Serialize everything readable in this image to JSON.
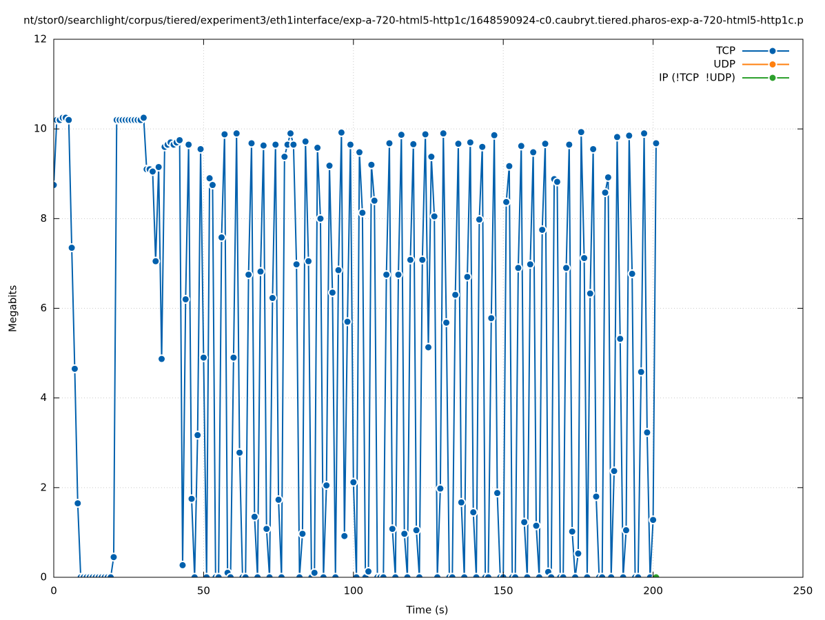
{
  "chart_data": {
    "type": "line",
    "title": "nt/stor0/searchlight/corpus/tiered/experiment3/eth1interface/exp-a-720-html5-http1c/1648590924-c0.caubryt.tiered.pharos-exp-a-720-html5-http1c.p",
    "xlabel": "Time (s)",
    "ylabel": "Megabits",
    "xlim": [
      0,
      250
    ],
    "xticks": [
      0,
      50,
      100,
      150,
      200,
      250
    ],
    "ylim": [
      0,
      12
    ],
    "yticks": [
      0,
      2,
      4,
      6,
      8,
      10,
      12
    ],
    "grid": true,
    "legend": "top-right",
    "series": [
      {
        "name": "TCP",
        "color": "#0060ad",
        "x": [
          0,
          1,
          2,
          3,
          4,
          5,
          6,
          7,
          8,
          9,
          10,
          11,
          12,
          13,
          14,
          15,
          16,
          17,
          18,
          19,
          20,
          21,
          22,
          23,
          24,
          25,
          26,
          27,
          28,
          29,
          30,
          31,
          32,
          33,
          34,
          35,
          36,
          37,
          38,
          39,
          40,
          41,
          42,
          43,
          44,
          45,
          46,
          47,
          48,
          49,
          50,
          51,
          52,
          53,
          54,
          55,
          56,
          57,
          58,
          59,
          60,
          61,
          62,
          63,
          64,
          65,
          66,
          67,
          68,
          69,
          70,
          71,
          72,
          73,
          74,
          75,
          76,
          77,
          78,
          79,
          80,
          81,
          82,
          83,
          84,
          85,
          86,
          87,
          88,
          89,
          90,
          91,
          92,
          93,
          94,
          95,
          96,
          97,
          98,
          99,
          100,
          101,
          102,
          103,
          104,
          105,
          106,
          107,
          108,
          109,
          110,
          111,
          112,
          113,
          114,
          115,
          116,
          117,
          118,
          119,
          120,
          121,
          122,
          123,
          124,
          125,
          126,
          127,
          128,
          129,
          130,
          131,
          132,
          133,
          134,
          135,
          136,
          137,
          138,
          139,
          140,
          141,
          142,
          143,
          144,
          145,
          146,
          147,
          148,
          149,
          150,
          151,
          152,
          153,
          154,
          155,
          156,
          157,
          158,
          159,
          160,
          161,
          162,
          163,
          164,
          165,
          166,
          167,
          168,
          169,
          170,
          171,
          172,
          173,
          174,
          175,
          176,
          177,
          178,
          179,
          180,
          181,
          182,
          183,
          184,
          185,
          186,
          187,
          188,
          189,
          190,
          191,
          192,
          193,
          194,
          195,
          196,
          197,
          198,
          199,
          200,
          201
        ],
        "values": [
          8.75,
          10.2,
          10.2,
          10.25,
          10.25,
          10.2,
          7.35,
          4.65,
          1.65,
          0,
          0,
          0,
          0,
          0,
          0,
          0,
          0,
          0,
          0,
          0,
          0.45,
          10.2,
          10.2,
          10.2,
          10.2,
          10.2,
          10.2,
          10.2,
          10.2,
          10.2,
          10.25,
          9.1,
          9.1,
          9.05,
          7.05,
          9.15,
          4.87,
          9.6,
          9.65,
          9.7,
          9.65,
          9.7,
          9.75,
          0.27,
          6.2,
          9.65,
          1.75,
          0,
          3.17,
          9.55,
          4.9,
          0,
          8.9,
          8.75,
          0,
          0,
          7.58,
          9.88,
          0.1,
          0,
          4.9,
          9.9,
          2.78,
          0,
          0,
          6.75,
          9.68,
          1.35,
          0,
          6.82,
          9.63,
          1.08,
          0,
          6.23,
          9.65,
          1.73,
          0,
          9.38,
          9.65,
          9.9,
          9.65,
          6.98,
          0,
          0.97,
          9.72,
          7.05,
          0,
          0.1,
          9.58,
          8.0,
          0,
          2.05,
          9.18,
          6.35,
          0,
          6.85,
          9.92,
          0.92,
          5.7,
          9.65,
          2.12,
          0,
          9.48,
          8.13,
          0,
          0.13,
          9.2,
          8.4,
          0,
          0,
          0,
          6.75,
          9.68,
          1.08,
          0,
          6.75,
          9.87,
          0.97,
          0,
          7.08,
          9.66,
          1.05,
          0,
          7.08,
          9.88,
          5.13,
          9.38,
          8.05,
          0,
          1.98,
          9.9,
          5.68,
          0,
          0,
          6.3,
          9.67,
          1.67,
          0,
          6.7,
          9.7,
          1.45,
          0,
          7.98,
          9.6,
          0,
          0,
          5.78,
          9.86,
          1.88,
          0,
          0,
          8.37,
          9.17,
          0,
          0,
          6.9,
          9.62,
          1.23,
          0,
          6.98,
          9.48,
          1.15,
          0,
          7.75,
          9.67,
          0.12,
          0,
          8.88,
          8.82,
          0,
          0,
          6.9,
          9.65,
          1.02,
          0,
          0.53,
          9.93,
          7.12,
          0,
          6.33,
          9.55,
          1.8,
          0,
          0,
          8.58,
          8.92,
          0,
          2.37,
          9.82,
          5.32,
          0,
          1.05,
          9.85,
          6.77,
          0,
          0,
          4.58,
          9.9,
          3.23,
          0,
          1.28,
          9.68
        ]
      },
      {
        "name": "UDP",
        "color": "#ff7f0e",
        "x": [],
        "values": []
      },
      {
        "name": "IP (!TCP  !UDP)",
        "color": "#2ca02c",
        "x": [
          201
        ],
        "values": [
          0
        ]
      }
    ]
  }
}
